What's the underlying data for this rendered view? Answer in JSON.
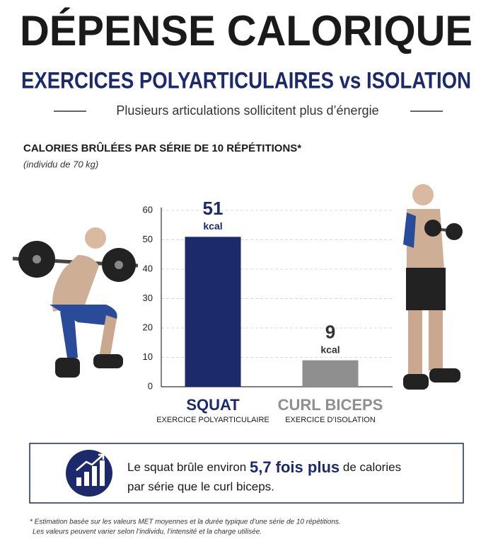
{
  "header": {
    "title": "DÉPENSE CALORIQUE",
    "subtitle": "EXERCICES POLYARTICULAIRES vs ISOLATION",
    "tagline": "Plusieurs articulations sollicitent plus d’énergie"
  },
  "chart_data": {
    "type": "bar",
    "title": "CALORIES BRÛLÉES PAR SÉRIE DE 10 RÉPÉTITIONS*",
    "note": "(individu de 70 kg)",
    "categories": [
      "SQUAT",
      "CURL BICEPS"
    ],
    "category_subtitles": [
      "EXERCICE POLYARTICULAIRE",
      "EXERCICE D’ISOLATION"
    ],
    "values": [
      51,
      9
    ],
    "unit": "kcal",
    "colors": [
      "#1c2a6b",
      "#8f8f8f"
    ],
    "ylim": [
      0,
      60
    ],
    "yticks": [
      0,
      10,
      20,
      30,
      40,
      50,
      60
    ],
    "grid": true
  },
  "callout": {
    "before": "Le squat brûle environ",
    "highlight": "5,7 fois plus",
    "after": "de calories",
    "line2": "par série que le curl biceps."
  },
  "footnote": [
    "* Estimation basée sur les valeurs MET moyennes et la durée typique d’une série de 10 répétitions.",
    "Les valeurs peuvent varier selon l’individu, l’intensité et la charge utilisée."
  ]
}
